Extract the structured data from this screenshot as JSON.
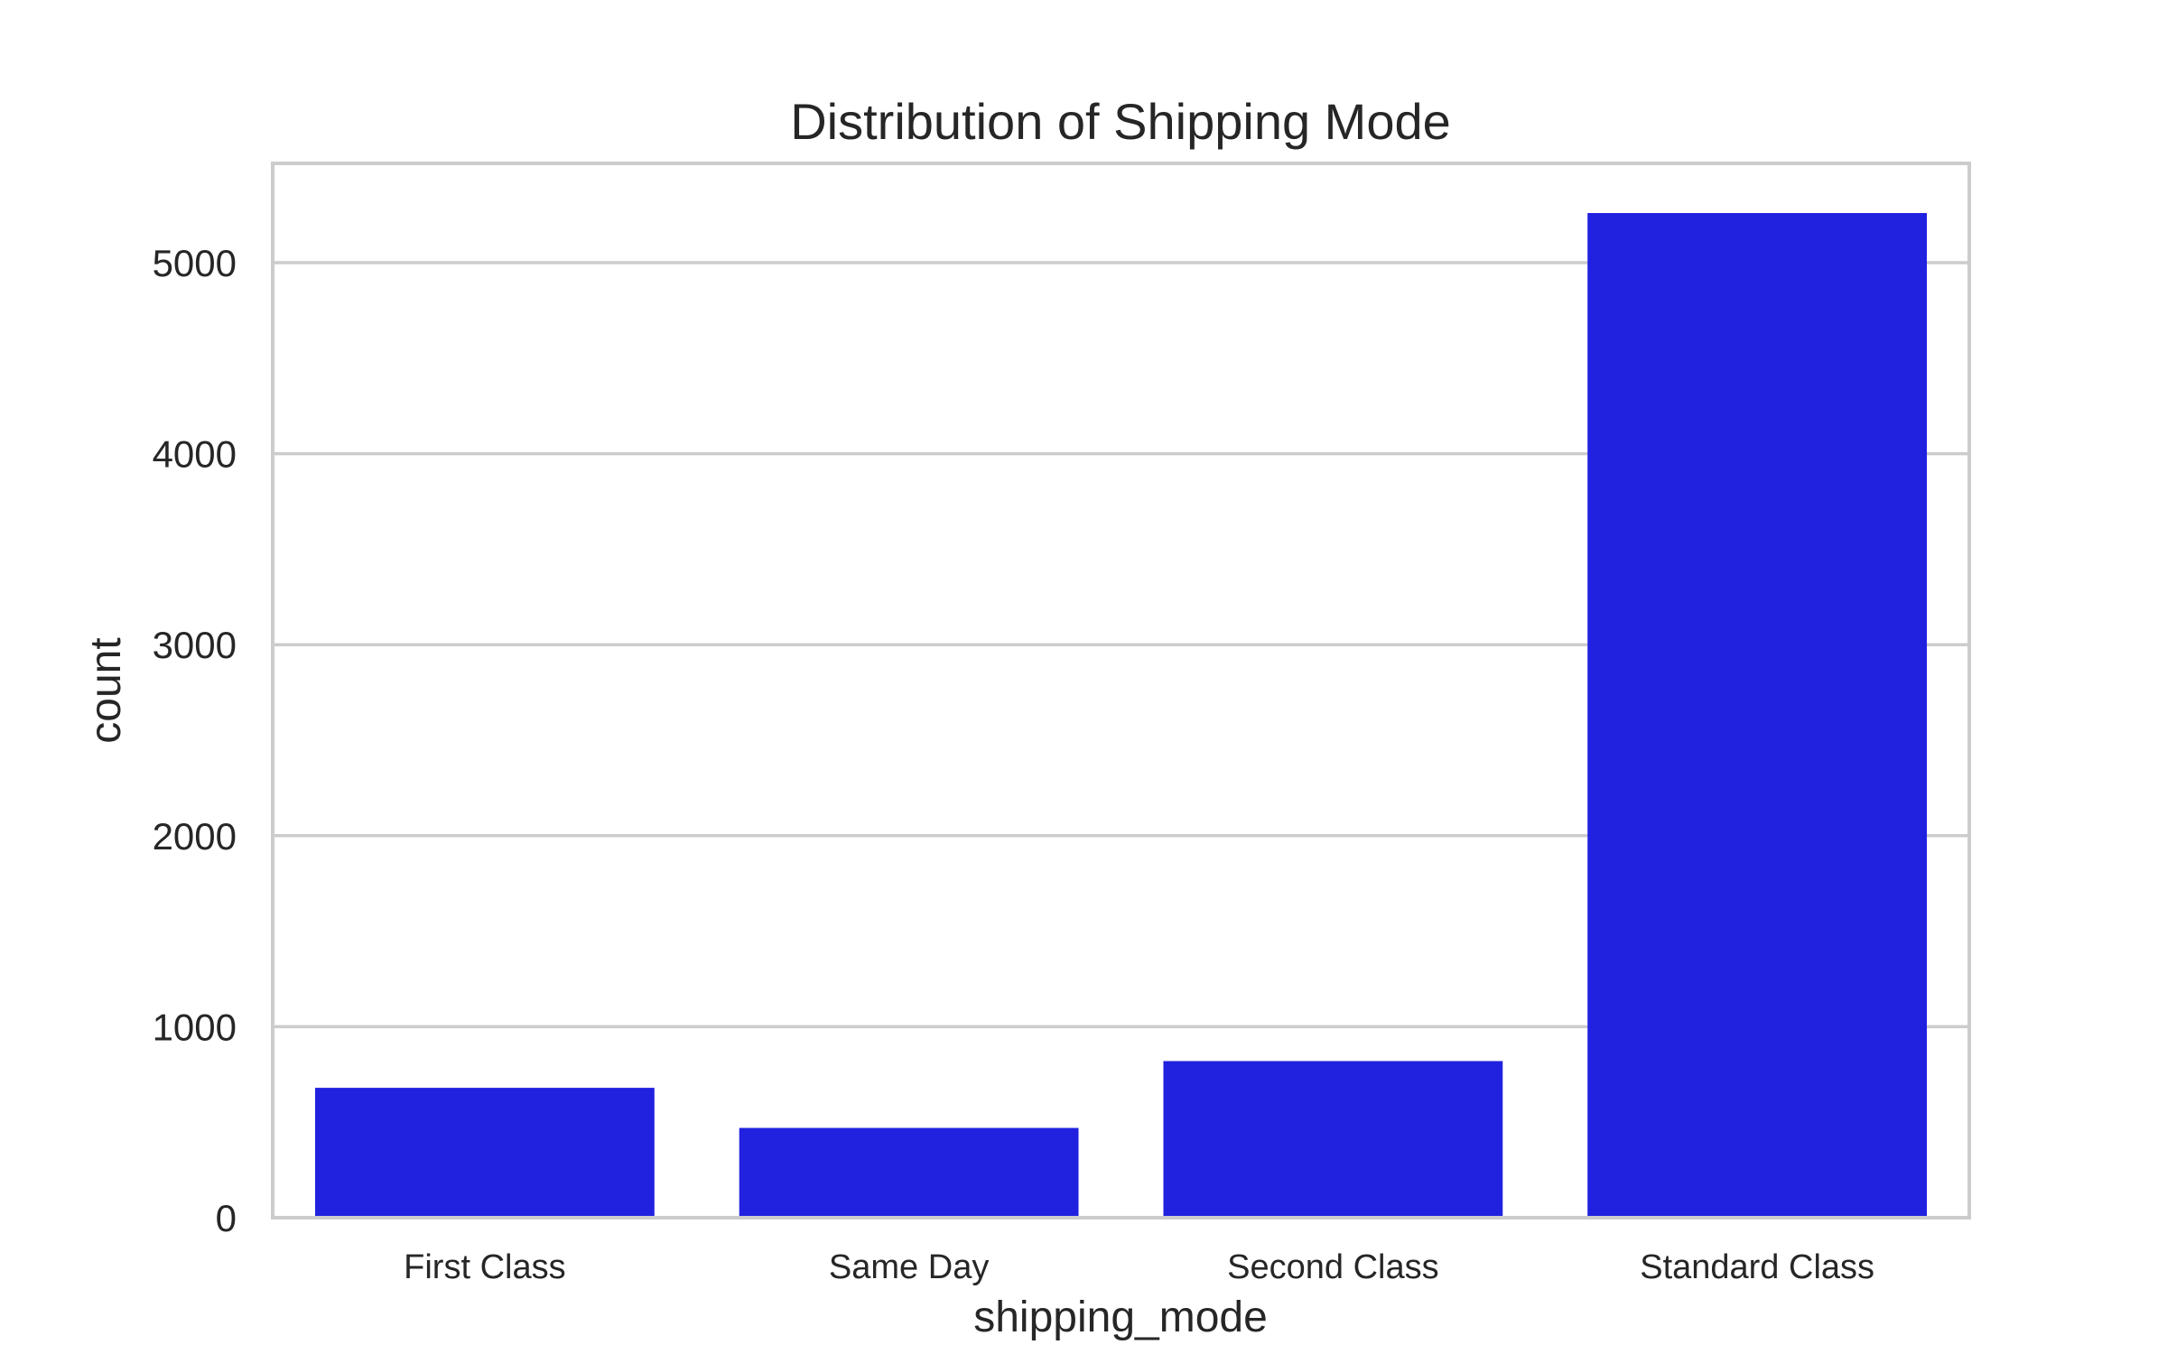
{
  "chart_data": {
    "type": "bar",
    "title": "Distribution of Shipping Mode",
    "xlabel": "shipping_mode",
    "ylabel": "count",
    "categories": [
      "First Class",
      "Same Day",
      "Second Class",
      "Standard Class"
    ],
    "values": [
      680,
      470,
      820,
      5260
    ],
    "ylim": [
      0,
      5520
    ],
    "yticks": [
      0,
      1000,
      2000,
      3000,
      4000,
      5000
    ],
    "grid": "horizontal",
    "bar_color": "#2121e0",
    "grid_color": "#cccccc",
    "text_color": "#262626",
    "legend": "none"
  }
}
